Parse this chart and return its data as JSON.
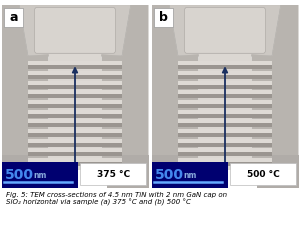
{
  "fig_width": 3.0,
  "fig_height": 2.35,
  "dpi": 100,
  "background_color": "#ffffff",
  "outer_bg": "#d8d4cf",
  "inner_bg": "#e8e4df",
  "caption": "Fig. 5: TEM cross-sections of 4.5 nm TiN with 2 nm GaN cap on\nSiO₂ horizontal via sample (a) 375 °C and (b) 500 °C",
  "label_a": "a",
  "label_b": "b",
  "temp_a": "375 °C",
  "temp_b": "500 °C",
  "scalebar_text": "500",
  "scalebar_unit": "nm",
  "arrow_color": "#1a3060",
  "layer_dark": "#9a9590",
  "layer_light": "#dedad5",
  "num_layers": 11,
  "label_box_color": "#ffffff",
  "scalebar_bg": "#000070",
  "scalebar_num_color": "#4488ee",
  "scalebar_nm_color": "#88aadd",
  "scalebar_line_color": "#66aaff",
  "temp_box_color": "#ffffff",
  "via_body_color": "#dbd7d2",
  "via_shoulder_color": "#b8b4af",
  "top_cap_color": "#ccc8c3",
  "top_inner_color": "#d8d4cf",
  "bottom_step_color": "#b0aca8"
}
